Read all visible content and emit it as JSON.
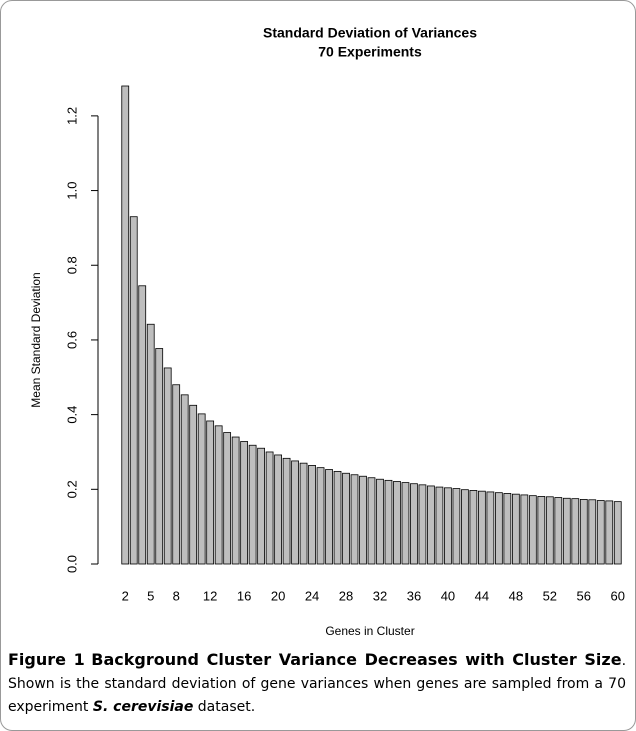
{
  "chart_data": {
    "type": "bar",
    "title": "Standard Deviation of Variances",
    "subtitle": "70 Experiments",
    "x_label": "Genes in Cluster",
    "y_label": "Mean Standard Deviation",
    "categories": [
      "2",
      null,
      null,
      "5",
      null,
      null,
      "8",
      null,
      null,
      null,
      "12",
      null,
      null,
      null,
      "16",
      null,
      null,
      null,
      "20",
      null,
      null,
      null,
      "24",
      null,
      null,
      null,
      "28",
      null,
      null,
      null,
      "32",
      null,
      null,
      null,
      "36",
      null,
      null,
      null,
      "40",
      null,
      null,
      null,
      "44",
      null,
      null,
      null,
      "48",
      null,
      null,
      null,
      "52",
      null,
      null,
      null,
      "56",
      null,
      null,
      null,
      "60"
    ],
    "values": [
      1.28,
      0.93,
      0.745,
      0.642,
      0.577,
      0.525,
      0.48,
      0.453,
      0.425,
      0.402,
      0.383,
      0.37,
      0.352,
      0.34,
      0.328,
      0.318,
      0.31,
      0.3,
      0.292,
      0.283,
      0.276,
      0.27,
      0.264,
      0.258,
      0.253,
      0.248,
      0.243,
      0.239,
      0.235,
      0.231,
      0.227,
      0.224,
      0.221,
      0.218,
      0.215,
      0.212,
      0.209,
      0.206,
      0.204,
      0.202,
      0.199,
      0.197,
      0.195,
      0.193,
      0.191,
      0.189,
      0.187,
      0.185,
      0.183,
      0.181,
      0.18,
      0.178,
      0.176,
      0.175,
      0.173,
      0.172,
      0.17,
      0.169,
      0.167
    ],
    "color": "#bebebe",
    "ylim": [
      0,
      1.28
    ],
    "yticks": [
      {
        "value": 0,
        "label": "0.0"
      },
      0.2,
      0.4,
      0.6,
      0.8,
      {
        "value": 1,
        "label": "1.0"
      },
      1.2
    ]
  },
  "caption": {
    "label": "Figure 1",
    "title": "Background Cluster Variance Decreases with Cluster Size",
    "text_before": ". Shown is the standard deviation of gene variances when genes are sampled from a 70 experiment ",
    "species": "S. cerevisiae",
    "text_after": " dataset."
  }
}
